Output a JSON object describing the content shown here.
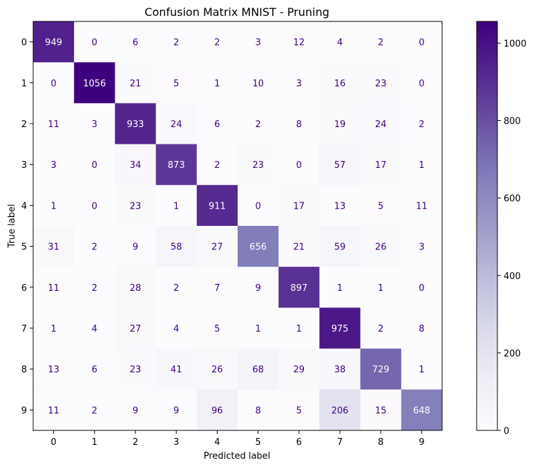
{
  "chart_data": {
    "type": "heatmap",
    "title": "Confusion Matrix MNIST - Pruning",
    "xlabel": "Predicted label",
    "ylabel": "True label",
    "x_categories": [
      "0",
      "1",
      "2",
      "3",
      "4",
      "5",
      "6",
      "7",
      "8",
      "9"
    ],
    "y_categories": [
      "0",
      "1",
      "2",
      "3",
      "4",
      "5",
      "6",
      "7",
      "8",
      "9"
    ],
    "matrix": [
      [
        949,
        0,
        6,
        2,
        2,
        3,
        12,
        4,
        2,
        0
      ],
      [
        0,
        1056,
        21,
        5,
        1,
        10,
        3,
        16,
        23,
        0
      ],
      [
        11,
        3,
        933,
        24,
        6,
        2,
        8,
        19,
        24,
        2
      ],
      [
        3,
        0,
        34,
        873,
        2,
        23,
        0,
        57,
        17,
        1
      ],
      [
        1,
        0,
        23,
        1,
        911,
        0,
        17,
        13,
        5,
        11
      ],
      [
        31,
        2,
        9,
        58,
        27,
        656,
        21,
        59,
        26,
        3
      ],
      [
        11,
        2,
        28,
        2,
        7,
        9,
        897,
        1,
        1,
        0
      ],
      [
        1,
        4,
        27,
        4,
        5,
        1,
        1,
        975,
        2,
        8
      ],
      [
        13,
        6,
        23,
        41,
        26,
        68,
        29,
        38,
        729,
        1
      ],
      [
        11,
        2,
        9,
        9,
        96,
        8,
        5,
        206,
        15,
        648
      ]
    ],
    "colormap": "Purples",
    "colorbar": {
      "min": 0,
      "max": 1056,
      "ticks": [
        0,
        200,
        400,
        600,
        800,
        1000
      ]
    },
    "text_colors": {
      "dark_bg": "#ffffff",
      "light_bg": "#3f007d"
    },
    "grid": false
  }
}
